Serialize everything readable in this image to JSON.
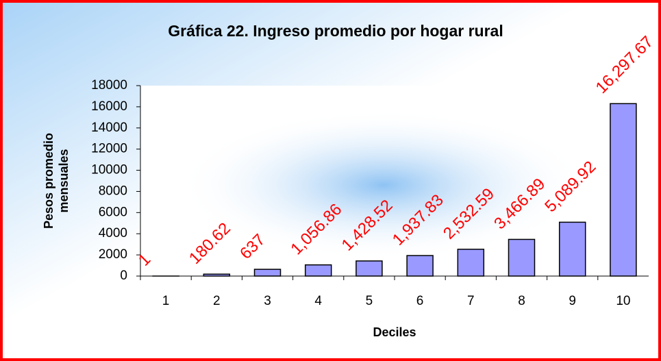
{
  "chart_data": {
    "type": "bar",
    "title": "Gráfica 22. Ingreso promedio por hogar rural",
    "xlabel": "Deciles",
    "ylabel": [
      "Pesos promedio",
      "mensuales"
    ],
    "categories": [
      "1",
      "2",
      "3",
      "4",
      "5",
      "6",
      "7",
      "8",
      "9",
      "10"
    ],
    "values": [
      1,
      180.62,
      637,
      1056.86,
      1428.52,
      1937.83,
      2532.59,
      3466.89,
      5089.92,
      16297.67
    ],
    "value_labels": [
      "1",
      "180.62",
      "637",
      "1,056.86",
      "1,428.52",
      "1,937.83",
      "2,532.59",
      "3,466.89",
      "5,089.92",
      "16,297.67"
    ],
    "color": "#9999ff",
    "label_color": "#ff0000",
    "ylim": [
      0,
      18000
    ],
    "yticks": [
      0,
      2000,
      4000,
      6000,
      8000,
      10000,
      12000,
      14000,
      16000,
      18000
    ],
    "grid": false
  }
}
